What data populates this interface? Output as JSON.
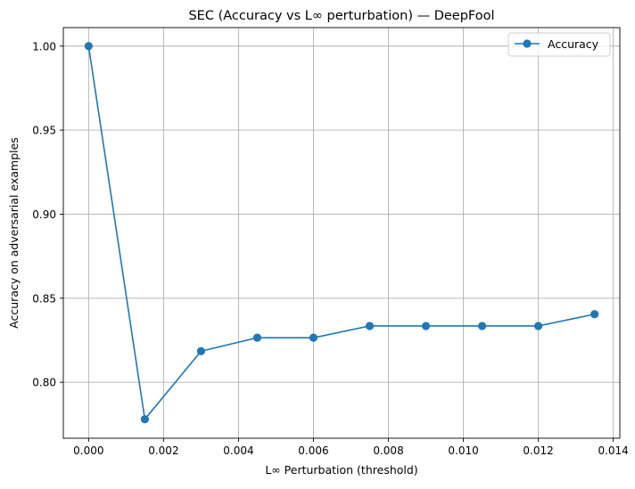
{
  "chart_data": {
    "type": "line",
    "title": "SEC (Accuracy vs L∞ perturbation) — DeepFool",
    "xlabel": "L∞ Perturbation (threshold)",
    "ylabel": "Accuracy on adversarial examples",
    "xlim": [
      -0.000675,
      0.014175
    ],
    "ylim": [
      0.7667,
      1.011
    ],
    "x_ticks": [
      0.0,
      0.002,
      0.004,
      0.006,
      0.008,
      0.01,
      0.012,
      0.014
    ],
    "x_tick_labels": [
      "0.000",
      "0.002",
      "0.004",
      "0.006",
      "0.008",
      "0.010",
      "0.012",
      "0.014"
    ],
    "y_ticks": [
      0.8,
      0.85,
      0.9,
      0.95,
      1.0
    ],
    "y_tick_labels": [
      "0.80",
      "0.85",
      "0.90",
      "0.95",
      "1.00"
    ],
    "grid": true,
    "legend_position": "top-right",
    "series": [
      {
        "name": "Accuracy",
        "color": "#1f77b4",
        "marker": "circle",
        "x": [
          0.0,
          0.0015,
          0.003,
          0.0045,
          0.006,
          0.0075,
          0.009,
          0.0105,
          0.012,
          0.0135
        ],
        "y": [
          1.0,
          0.778,
          0.8185,
          0.8265,
          0.8265,
          0.8335,
          0.8335,
          0.8335,
          0.8335,
          0.8405
        ]
      }
    ]
  }
}
